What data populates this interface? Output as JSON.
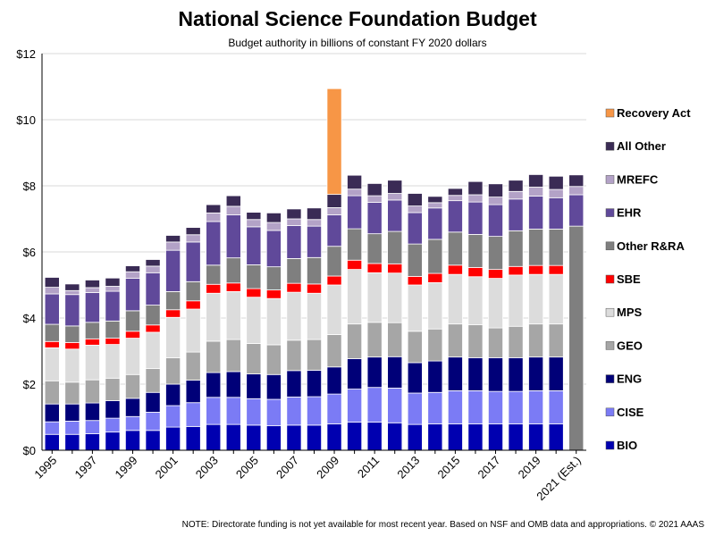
{
  "chart_data": {
    "type": "bar",
    "stacked": true,
    "title": "National Science Foundation Budget",
    "subtitle": "Budget authority  in billions of constant FY 2020 dollars",
    "note": "NOTE: Directorate funding is not yet available for most recent year. Based on NSF and OMB data and appropriations. © 2021 AAAS",
    "ylim": [
      0,
      12
    ],
    "y_ticks": [
      "$0",
      "$2",
      "$4",
      "$6",
      "$8",
      "$10",
      "$12"
    ],
    "y_tick_values": [
      0,
      2,
      4,
      6,
      8,
      10,
      12
    ],
    "x_tick_labels": [
      "1995",
      "1997",
      "1999",
      "2001",
      "2003",
      "2005",
      "2007",
      "2009",
      "2011",
      "2013",
      "2015",
      "2017",
      "2019",
      "2021 (Est.)"
    ],
    "categories": [
      "1995",
      "1996",
      "1997",
      "1998",
      "1999",
      "2000",
      "2001",
      "2002",
      "2003",
      "2004",
      "2005",
      "2006",
      "2007",
      "2008",
      "2009",
      "2010",
      "2011",
      "2012",
      "2013",
      "2014",
      "2015",
      "2016",
      "2017",
      "2018",
      "2019",
      "2020",
      "2021 (Est.)"
    ],
    "grid": "horizontal",
    "legend_position": "right",
    "series": [
      {
        "name": "BIO",
        "color": "#0000b0",
        "values": [
          0.48,
          0.48,
          0.5,
          0.55,
          0.6,
          0.6,
          0.7,
          0.72,
          0.78,
          0.78,
          0.76,
          0.74,
          0.76,
          0.76,
          0.8,
          0.85,
          0.85,
          0.83,
          0.78,
          0.8,
          0.8,
          0.8,
          0.8,
          0.8,
          0.8,
          0.8,
          null
        ]
      },
      {
        "name": "CISE",
        "color": "#7b7bf5",
        "values": [
          0.38,
          0.4,
          0.4,
          0.42,
          0.42,
          0.55,
          0.65,
          0.72,
          0.82,
          0.82,
          0.8,
          0.8,
          0.85,
          0.86,
          0.9,
          1.0,
          1.05,
          1.05,
          0.95,
          0.95,
          1.0,
          1.0,
          0.98,
          0.98,
          1.0,
          1.0,
          null
        ]
      },
      {
        "name": "ENG",
        "color": "#000078",
        "values": [
          0.54,
          0.52,
          0.53,
          0.53,
          0.55,
          0.6,
          0.65,
          0.68,
          0.75,
          0.78,
          0.75,
          0.75,
          0.8,
          0.8,
          0.82,
          0.92,
          0.92,
          0.95,
          0.92,
          0.95,
          1.02,
          1.0,
          1.02,
          1.02,
          1.02,
          1.02,
          null
        ]
      },
      {
        "name": "GEO",
        "color": "#a6a6a6",
        "values": [
          0.7,
          0.66,
          0.7,
          0.68,
          0.72,
          0.72,
          0.8,
          0.85,
          0.95,
          0.97,
          0.92,
          0.9,
          0.92,
          0.93,
          0.98,
          1.05,
          1.05,
          1.03,
          0.95,
          0.97,
          1.0,
          1.0,
          0.9,
          0.95,
          1.0,
          1.0,
          null
        ]
      },
      {
        "name": "MPS",
        "color": "#dcdcdc",
        "values": [
          1.0,
          1.0,
          1.05,
          1.02,
          1.1,
          1.1,
          1.22,
          1.3,
          1.45,
          1.45,
          1.4,
          1.4,
          1.45,
          1.4,
          1.5,
          1.65,
          1.5,
          1.5,
          1.4,
          1.4,
          1.5,
          1.45,
          1.5,
          1.55,
          1.5,
          1.5,
          null
        ]
      },
      {
        "name": "SBE",
        "color": "#ff0000",
        "values": [
          0.19,
          0.2,
          0.19,
          0.19,
          0.21,
          0.22,
          0.23,
          0.25,
          0.27,
          0.26,
          0.26,
          0.26,
          0.27,
          0.28,
          0.27,
          0.28,
          0.28,
          0.28,
          0.26,
          0.28,
          0.28,
          0.28,
          0.27,
          0.26,
          0.27,
          0.27,
          null
        ]
      },
      {
        "name": "Other R&RA",
        "color": "#7f7f7f",
        "values": [
          0.52,
          0.5,
          0.5,
          0.52,
          0.62,
          0.6,
          0.55,
          0.58,
          0.58,
          0.76,
          0.72,
          0.7,
          0.75,
          0.8,
          0.9,
          0.95,
          0.9,
          0.98,
          0.98,
          1.03,
          1.0,
          1.0,
          1.0,
          1.08,
          1.1,
          1.1,
          6.78
        ]
      },
      {
        "name": "EHR",
        "color": "#60499a",
        "values": [
          0.92,
          0.95,
          0.9,
          0.9,
          0.98,
          0.98,
          1.25,
          1.2,
          1.32,
          1.3,
          1.15,
          1.1,
          1.0,
          0.95,
          0.95,
          1.0,
          0.95,
          0.95,
          0.95,
          0.95,
          0.95,
          0.98,
          0.96,
          0.96,
          1.0,
          0.95,
          0.95
        ]
      },
      {
        "name": "MREFC",
        "color": "#b3a2c7",
        "values": [
          0.2,
          0.12,
          0.15,
          0.15,
          0.2,
          0.2,
          0.25,
          0.22,
          0.26,
          0.26,
          0.22,
          0.24,
          0.2,
          0.2,
          0.22,
          0.2,
          0.2,
          0.2,
          0.2,
          0.16,
          0.16,
          0.22,
          0.23,
          0.23,
          0.27,
          0.25,
          0.25
        ]
      },
      {
        "name": "All Other",
        "color": "#3a2b55",
        "values": [
          0.3,
          0.2,
          0.23,
          0.25,
          0.18,
          0.2,
          0.2,
          0.22,
          0.25,
          0.32,
          0.22,
          0.29,
          0.3,
          0.35,
          0.4,
          0.42,
          0.37,
          0.4,
          0.38,
          0.19,
          0.21,
          0.4,
          0.4,
          0.34,
          0.38,
          0.4,
          0.35
        ]
      },
      {
        "name": "Recovery Act",
        "color": "#f79646",
        "values": [
          0,
          0,
          0,
          0,
          0,
          0,
          0,
          0,
          0,
          0,
          0,
          0,
          0,
          0,
          3.2,
          0,
          0,
          0,
          0,
          0,
          0,
          0,
          0,
          0,
          0,
          0,
          0
        ]
      }
    ]
  }
}
